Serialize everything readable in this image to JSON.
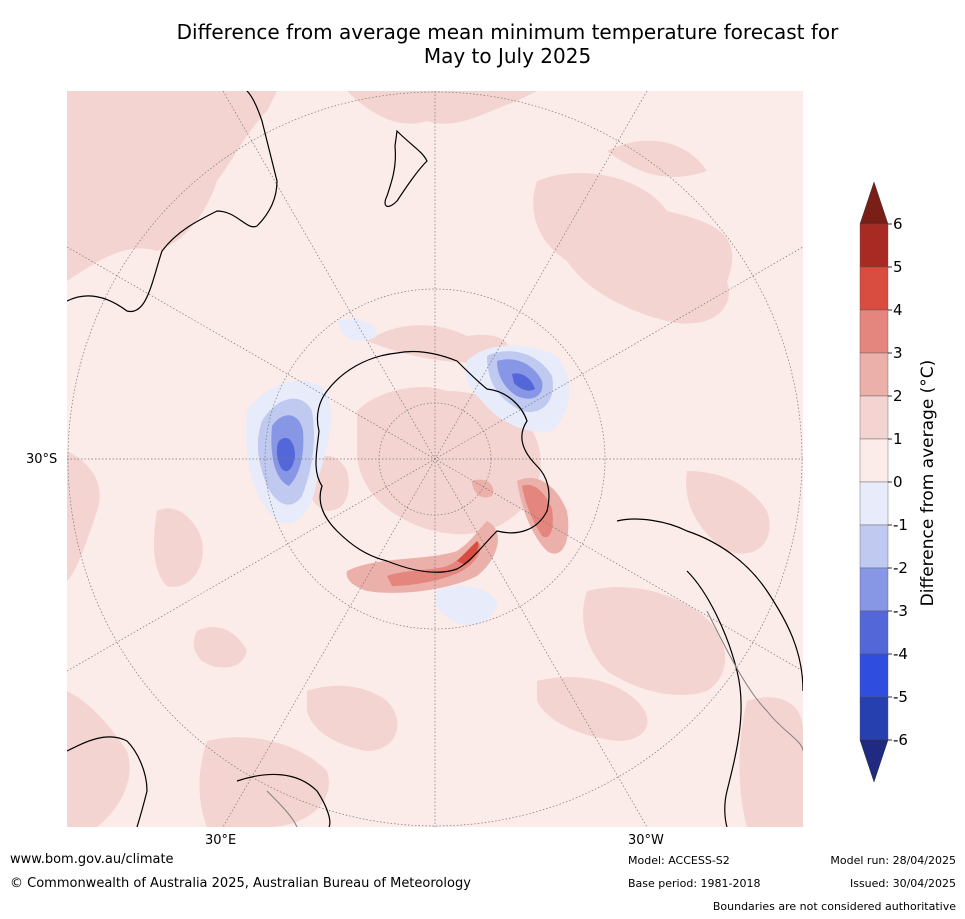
{
  "title_line1": "Difference from average mean minimum temperature forecast for",
  "title_line2": "May to July 2025",
  "map": {
    "lat_label": "30°S",
    "lon_label_left": "30°E",
    "lon_label_right": "30°W",
    "colors": {
      "background": "#fbebe9",
      "warm_1_2": "#f3d4d1",
      "warm_2_3": "#ebb0aa",
      "warm_3_4": "#e5867e",
      "warm_4_5": "#d94c40",
      "cool_0_1": "#e8ecfa",
      "cool_1_2": "#c0c9f0",
      "cool_2_3": "#8797e6",
      "cool_3_4": "#5467d9",
      "coastline": "#000000",
      "boundary": "#808080",
      "graticule": "#777777"
    }
  },
  "colorbar": {
    "label": "Difference from average (°C)",
    "ticks": [
      "6",
      "5",
      "4",
      "3",
      "2",
      "1",
      "0",
      "-1",
      "-2",
      "-3",
      "-4",
      "-5",
      "-6"
    ],
    "bands": [
      {
        "range": "5 to 6",
        "color": "#a92a22"
      },
      {
        "range": "4 to 5",
        "color": "#d94c40"
      },
      {
        "range": "3 to 4",
        "color": "#e5867e"
      },
      {
        "range": "2 to 3",
        "color": "#ebb0aa"
      },
      {
        "range": "1 to 2",
        "color": "#f3d4d1"
      },
      {
        "range": "0 to 1",
        "color": "#fbebe9"
      },
      {
        "range": "-1 to 0",
        "color": "#e8ecfa"
      },
      {
        "range": "-2 to -1",
        "color": "#c0c9f0"
      },
      {
        "range": "-3 to -2",
        "color": "#8797e6"
      },
      {
        "range": "-4 to -3",
        "color": "#5467d9"
      },
      {
        "range": "-5 to -4",
        "color": "#2f4ee0"
      },
      {
        "range": "-6 to -5",
        "color": "#2640b0"
      }
    ],
    "over_color": "#7a1f18",
    "under_color": "#1f2a80"
  },
  "footer": {
    "website": "www.bom.gov.au/climate",
    "copyright": "© Commonwealth of Australia 2025, Australian Bureau of Meteorology",
    "model": "Model: ACCESS-S2",
    "base_period": "Base period: 1981-2018",
    "model_run": "Model run: 28/04/2025",
    "issued": "Issued: 30/04/2025",
    "disclaimer": "Boundaries are not considered authoritative"
  }
}
